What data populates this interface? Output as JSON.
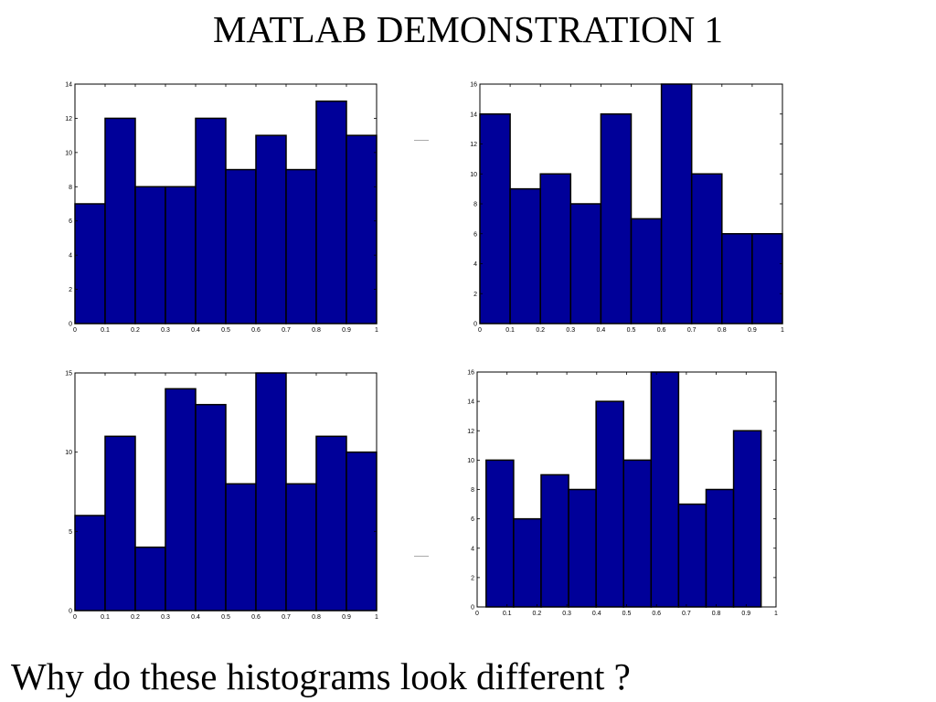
{
  "slide": {
    "title": "MATLAB DEMONSTRATION 1",
    "question": "Why do these histograms look different ?"
  },
  "colors": {
    "bar": "#000099",
    "edge": "#000000"
  },
  "chart_data": [
    {
      "type": "bar",
      "bin_edges": [
        0,
        0.1,
        0.2,
        0.3,
        0.4,
        0.5,
        0.6,
        0.7,
        0.8,
        0.9,
        1.0
      ],
      "values": [
        7,
        12,
        8,
        8,
        12,
        9,
        11,
        9,
        13,
        11
      ],
      "xlim": [
        0,
        1
      ],
      "ylim": [
        0,
        14
      ],
      "xticks": [
        "0",
        "0.1",
        "0.2",
        "0.3",
        "0.4",
        "0.5",
        "0.6",
        "0.7",
        "0.8",
        "0.9",
        "1"
      ],
      "yticks": [
        0,
        2,
        4,
        6,
        8,
        10,
        12,
        14
      ],
      "grid": false
    },
    {
      "type": "bar",
      "bin_edges": [
        0,
        0.1,
        0.2,
        0.3,
        0.4,
        0.5,
        0.6,
        0.7,
        0.8,
        0.9,
        1.0
      ],
      "values": [
        14,
        9,
        10,
        8,
        14,
        7,
        16,
        10,
        6,
        6
      ],
      "xlim": [
        0,
        1
      ],
      "ylim": [
        0,
        16
      ],
      "xticks": [
        "0",
        "0.1",
        "0.2",
        "0.3",
        "0.4",
        "0.5",
        "0.6",
        "0.7",
        "0.8",
        "0.9",
        "1"
      ],
      "yticks": [
        0,
        2,
        4,
        6,
        8,
        10,
        12,
        14,
        16
      ],
      "grid": false
    },
    {
      "type": "bar",
      "bin_edges": [
        0,
        0.1,
        0.2,
        0.3,
        0.4,
        0.5,
        0.6,
        0.7,
        0.8,
        0.9,
        1.0
      ],
      "values": [
        6,
        11,
        4,
        14,
        13,
        8,
        15,
        8,
        11,
        10
      ],
      "xlim": [
        0,
        1
      ],
      "ylim": [
        0,
        15
      ],
      "xticks": [
        "0",
        "0.1",
        "0.2",
        "0.3",
        "0.4",
        "0.5",
        "0.6",
        "0.7",
        "0.8",
        "0.9",
        "1"
      ],
      "yticks": [
        0,
        5,
        10,
        15
      ],
      "grid": false
    },
    {
      "type": "bar",
      "bin_edges": [
        0.03,
        0.122,
        0.214,
        0.306,
        0.398,
        0.49,
        0.582,
        0.674,
        0.766,
        0.858,
        0.95
      ],
      "values": [
        10,
        6,
        9,
        8,
        14,
        10,
        16,
        7,
        8,
        12
      ],
      "xlim": [
        0,
        1
      ],
      "ylim": [
        0,
        16
      ],
      "xticks": [
        "0",
        "0.1",
        "0.2",
        "0.3",
        "0.4",
        "0.5",
        "0.6",
        "0.7",
        "0.8",
        "0.9",
        "1"
      ],
      "yticks": [
        0,
        2,
        4,
        6,
        8,
        10,
        12,
        14,
        16
      ],
      "grid": false
    }
  ]
}
